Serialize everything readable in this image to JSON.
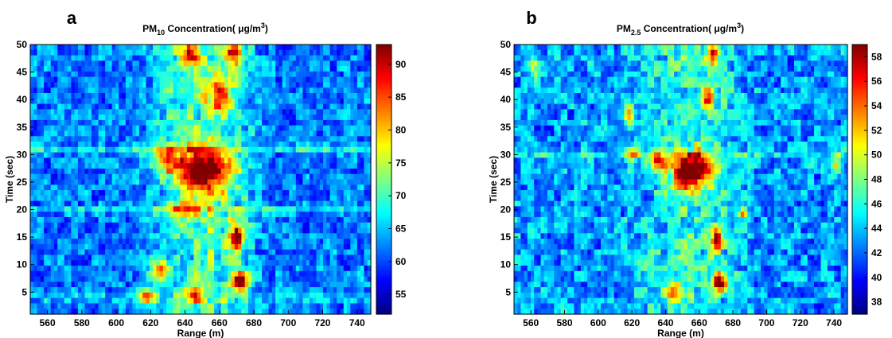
{
  "chart_data": [
    {
      "type": "heatmap",
      "panel_label": "a",
      "title_parts": {
        "prefix": "PM",
        "sub": "10",
        "mid": " Concentration( ",
        "mu": "μ",
        "unit": "g/m",
        "sup": "3",
        "suffix": ")"
      },
      "xlabel": "Range (m)",
      "ylabel": "Time (sec)",
      "xlim": [
        550,
        748
      ],
      "ylim": [
        1,
        50
      ],
      "xticks": [
        560,
        580,
        600,
        620,
        640,
        660,
        680,
        700,
        720,
        740
      ],
      "yticks": [
        5,
        10,
        15,
        20,
        25,
        30,
        35,
        40,
        45,
        50
      ],
      "colorbar": {
        "min": 52,
        "max": 93,
        "ticks": [
          55,
          60,
          65,
          70,
          75,
          80,
          85,
          90
        ]
      },
      "colormap": "jet",
      "background_value": 62,
      "variation": 4,
      "bands": [
        {
          "t": 31,
          "amp": 6
        },
        {
          "t": 20,
          "amp": 5
        },
        {
          "t": 4,
          "amp": 4
        }
      ],
      "plume": {
        "x_from": 612,
        "x_to": 688,
        "center_x": 650,
        "width": 28,
        "amp": 8
      },
      "hotspots": [
        {
          "x": 652,
          "t": 27,
          "sx": 14,
          "st": 4,
          "value": 93
        },
        {
          "x": 630,
          "t": 29,
          "sx": 8,
          "st": 2.5,
          "value": 82
        },
        {
          "x": 670,
          "t": 15,
          "sx": 5,
          "st": 2.5,
          "value": 90
        },
        {
          "x": 672,
          "t": 7,
          "sx": 5,
          "st": 2,
          "value": 91
        },
        {
          "x": 660,
          "t": 41,
          "sx": 7,
          "st": 3,
          "value": 84
        },
        {
          "x": 643,
          "t": 48,
          "sx": 6,
          "st": 2.5,
          "value": 82
        },
        {
          "x": 668,
          "t": 48,
          "sx": 5,
          "st": 2.5,
          "value": 86
        },
        {
          "x": 645,
          "t": 5,
          "sx": 5,
          "st": 1.5,
          "value": 82
        },
        {
          "x": 618,
          "t": 4,
          "sx": 4,
          "st": 1.5,
          "value": 80
        },
        {
          "x": 640,
          "t": 20,
          "sx": 10,
          "st": 1.5,
          "value": 78
        },
        {
          "x": 625,
          "t": 9,
          "sx": 6,
          "st": 2,
          "value": 76
        }
      ]
    },
    {
      "type": "heatmap",
      "panel_label": "b",
      "title_parts": {
        "prefix": "PM",
        "sub": "2.5",
        "mid": " Concentration( ",
        "mu": "μ",
        "unit": "g/m",
        "sup": "3",
        "suffix": ")"
      },
      "xlabel": "Range (m)",
      "ylabel": "Time (sec)",
      "xlim": [
        550,
        748
      ],
      "ylim": [
        1,
        50
      ],
      "xticks": [
        560,
        580,
        600,
        620,
        640,
        660,
        680,
        700,
        720,
        740
      ],
      "yticks": [
        5,
        10,
        15,
        20,
        25,
        30,
        35,
        40,
        45,
        50
      ],
      "colorbar": {
        "min": 37,
        "max": 59,
        "ticks": [
          38,
          40,
          42,
          44,
          46,
          48,
          50,
          52,
          54,
          56,
          58
        ]
      },
      "colormap": "jet",
      "background_value": 43,
      "variation": 2.5,
      "bands": [
        {
          "t": 30,
          "amp": 2
        }
      ],
      "plume": {
        "x_from": 615,
        "x_to": 690,
        "center_x": 655,
        "width": 30,
        "amp": 3
      },
      "hotspots": [
        {
          "x": 655,
          "t": 27,
          "sx": 12,
          "st": 3.5,
          "value": 59
        },
        {
          "x": 635,
          "t": 29,
          "sx": 5,
          "st": 2,
          "value": 53
        },
        {
          "x": 670,
          "t": 14.5,
          "sx": 4,
          "st": 2,
          "value": 57
        },
        {
          "x": 672,
          "t": 7,
          "sx": 4,
          "st": 1.8,
          "value": 58
        },
        {
          "x": 665,
          "t": 40,
          "sx": 4,
          "st": 2,
          "value": 53
        },
        {
          "x": 668,
          "t": 48,
          "sx": 3,
          "st": 2,
          "value": 55
        },
        {
          "x": 618,
          "t": 37,
          "sx": 3,
          "st": 2,
          "value": 52
        },
        {
          "x": 645,
          "t": 5,
          "sx": 5,
          "st": 1.5,
          "value": 51
        },
        {
          "x": 620,
          "t": 30,
          "sx": 4,
          "st": 1.5,
          "value": 51
        },
        {
          "x": 686,
          "t": 19,
          "sx": 3,
          "st": 1,
          "value": 52
        },
        {
          "x": 742,
          "t": 28,
          "sx": 3,
          "st": 2,
          "value": 51
        },
        {
          "x": 563,
          "t": 46,
          "sx": 3,
          "st": 2,
          "value": 50
        }
      ]
    }
  ]
}
